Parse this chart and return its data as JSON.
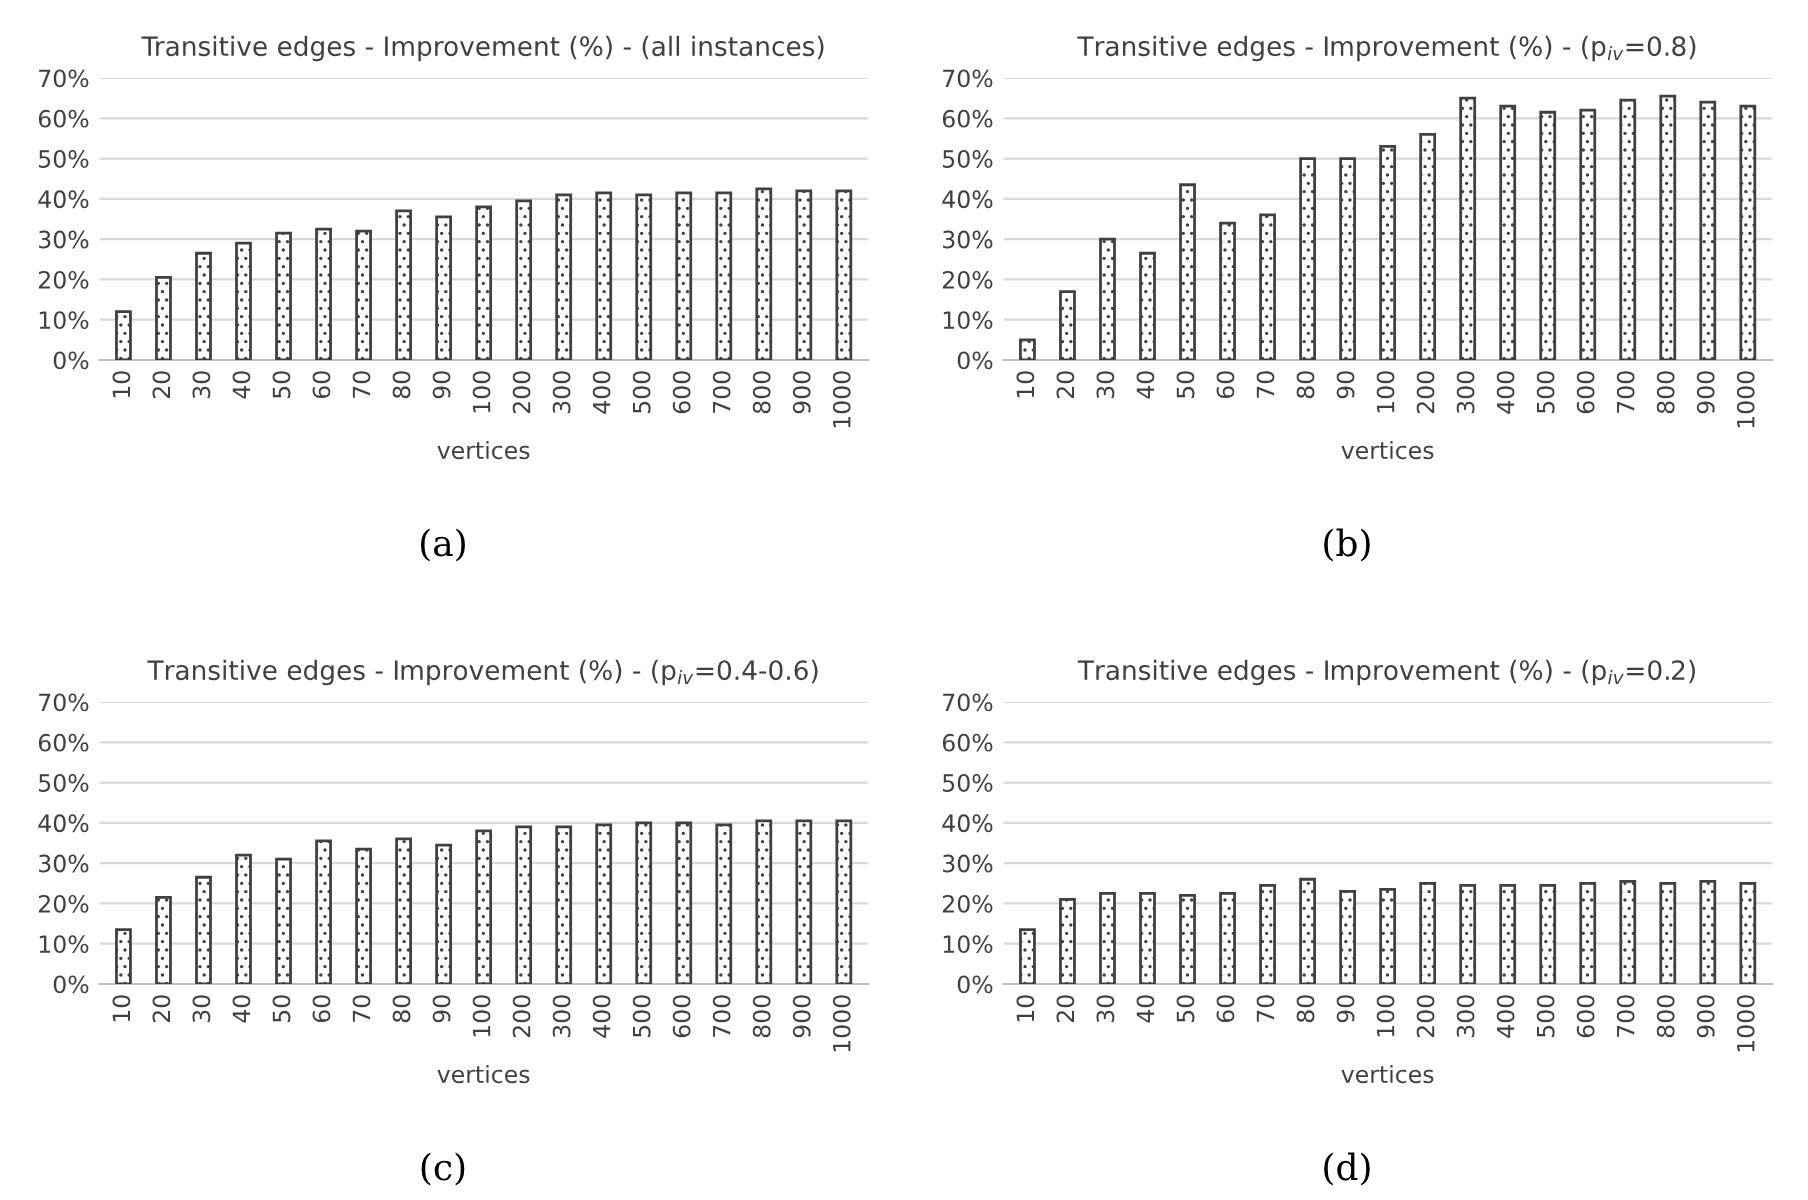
{
  "chart_data": [
    {
      "type": "bar",
      "title": "Transitive edges - Improvement (%) - (all instances)",
      "xlabel": "vertices",
      "annotations": [
        "(a)"
      ],
      "categories": [
        "10",
        "20",
        "30",
        "40",
        "50",
        "60",
        "70",
        "80",
        "90",
        "100",
        "200",
        "300",
        "400",
        "500",
        "600",
        "700",
        "800",
        "900",
        "1000"
      ],
      "values": [
        12,
        20.5,
        26.5,
        29,
        31.5,
        32.5,
        32,
        37,
        35.5,
        38,
        39.5,
        41,
        41.5,
        41,
        41.5,
        41.5,
        42.5,
        42,
        42
      ],
      "color": "#404040",
      "ylim": [
        0,
        70
      ],
      "yticks": [
        {
          "value": 0,
          "label": "0%"
        },
        {
          "value": 10,
          "label": "10%"
        },
        {
          "value": 20,
          "label": "20%"
        },
        {
          "value": 30,
          "label": "30%"
        },
        {
          "value": 40,
          "label": "40%"
        },
        {
          "value": 50,
          "label": "50%"
        },
        {
          "value": 60,
          "label": "60%"
        },
        {
          "value": 70,
          "label": "70%"
        }
      ],
      "grid": "y",
      "legend": false
    },
    {
      "type": "bar",
      "title": "Transitive edges - Improvement (%) - (p$_{iv}$=0.8)",
      "xlabel": "vertices",
      "annotations": [
        "(b)"
      ],
      "categories": [
        "10",
        "20",
        "30",
        "40",
        "50",
        "60",
        "70",
        "80",
        "90",
        "100",
        "200",
        "300",
        "400",
        "500",
        "600",
        "700",
        "800",
        "900",
        "1000"
      ],
      "values": [
        5,
        17,
        30,
        26.5,
        43.5,
        34,
        36,
        50,
        50,
        53,
        56,
        65,
        63,
        61.5,
        62,
        64.5,
        65.5,
        64,
        63
      ],
      "color": "#404040",
      "ylim": [
        0,
        70
      ],
      "yticks": [
        {
          "value": 0,
          "label": "0%"
        },
        {
          "value": 10,
          "label": "10%"
        },
        {
          "value": 20,
          "label": "20%"
        },
        {
          "value": 30,
          "label": "30%"
        },
        {
          "value": 40,
          "label": "40%"
        },
        {
          "value": 50,
          "label": "50%"
        },
        {
          "value": 60,
          "label": "60%"
        },
        {
          "value": 70,
          "label": "70%"
        }
      ],
      "grid": "y",
      "legend": false
    },
    {
      "type": "bar",
      "title": "Transitive edges - Improvement (%) - (p$_{iv}$=0.4-0.6)",
      "xlabel": "vertices",
      "annotations": [
        "(c)"
      ],
      "categories": [
        "10",
        "20",
        "30",
        "40",
        "50",
        "60",
        "70",
        "80",
        "90",
        "100",
        "200",
        "300",
        "400",
        "500",
        "600",
        "700",
        "800",
        "900",
        "1000"
      ],
      "values": [
        13.5,
        21.5,
        26.5,
        32,
        31,
        35.5,
        33.5,
        36,
        34.5,
        38,
        39,
        39,
        39.5,
        40,
        40,
        39.5,
        40.5,
        40.5,
        40.5
      ],
      "color": "#404040",
      "ylim": [
        0,
        70
      ],
      "yticks": [
        {
          "value": 0,
          "label": "0%"
        },
        {
          "value": 10,
          "label": "10%"
        },
        {
          "value": 20,
          "label": "20%"
        },
        {
          "value": 30,
          "label": "30%"
        },
        {
          "value": 40,
          "label": "40%"
        },
        {
          "value": 50,
          "label": "50%"
        },
        {
          "value": 60,
          "label": "60%"
        },
        {
          "value": 70,
          "label": "70%"
        }
      ],
      "grid": "y",
      "legend": false
    },
    {
      "type": "bar",
      "title": "Transitive edges - Improvement (%) - (p$_{iv}$=0.2)",
      "xlabel": "vertices",
      "annotations": [
        "(d)"
      ],
      "categories": [
        "10",
        "20",
        "30",
        "40",
        "50",
        "60",
        "70",
        "80",
        "90",
        "100",
        "200",
        "300",
        "400",
        "500",
        "600",
        "700",
        "800",
        "900",
        "1000"
      ],
      "values": [
        13.5,
        21,
        22.5,
        22.5,
        22,
        22.5,
        24.5,
        26,
        23,
        23.5,
        25,
        24.5,
        24.5,
        24.5,
        25,
        25.5,
        25,
        25.5,
        25
      ],
      "color": "#404040",
      "ylim": [
        0,
        70
      ],
      "yticks": [
        {
          "value": 0,
          "label": "0%"
        },
        {
          "value": 10,
          "label": "10%"
        },
        {
          "value": 20,
          "label": "20%"
        },
        {
          "value": 30,
          "label": "30%"
        },
        {
          "value": 40,
          "label": "40%"
        },
        {
          "value": 50,
          "label": "50%"
        },
        {
          "value": 60,
          "label": "60%"
        },
        {
          "value": 70,
          "label": "70%"
        }
      ],
      "grid": "y",
      "legend": false
    }
  ]
}
